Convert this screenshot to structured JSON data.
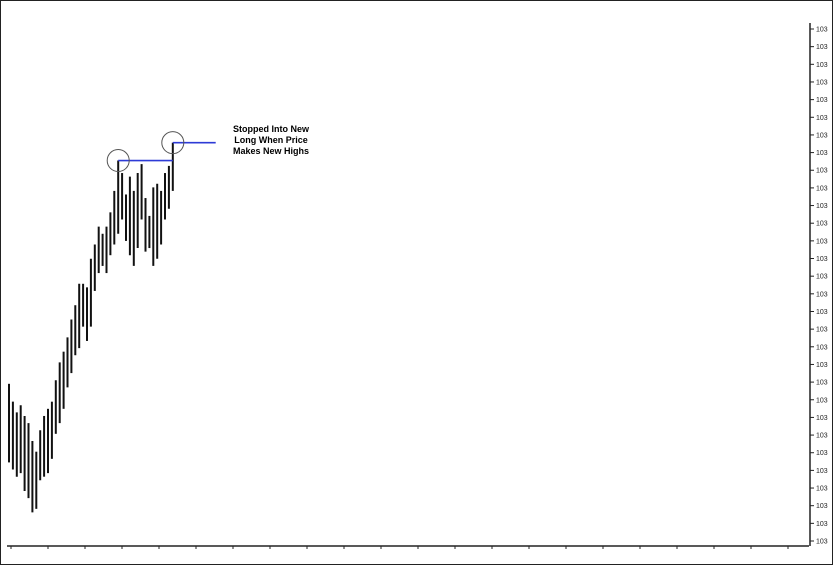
{
  "chart_data": {
    "type": "ohlc",
    "title": "",
    "xlabel": "",
    "ylabel": "",
    "ylim": [
      1030,
      1059
    ],
    "y_ticks": [
      "103",
      "103",
      "103",
      "103",
      "103",
      "103",
      "103",
      "103",
      "103",
      "103",
      "103",
      "103",
      "103",
      "103",
      "103",
      "103",
      "103",
      "103",
      "103",
      "103",
      "103",
      "103",
      "103",
      "103",
      "103",
      "103",
      "103",
      "103",
      "103",
      "103"
    ],
    "bars": [
      {
        "high": 1038.8,
        "low": 1034.4
      },
      {
        "high": 1037.8,
        "low": 1034.0
      },
      {
        "high": 1037.2,
        "low": 1033.6
      },
      {
        "high": 1037.6,
        "low": 1033.8
      },
      {
        "high": 1037.0,
        "low": 1032.8
      },
      {
        "high": 1036.6,
        "low": 1032.4
      },
      {
        "high": 1035.6,
        "low": 1031.6
      },
      {
        "high": 1035.0,
        "low": 1031.8
      },
      {
        "high": 1036.2,
        "low": 1033.4
      },
      {
        "high": 1037.0,
        "low": 1033.6
      },
      {
        "high": 1037.4,
        "low": 1033.8
      },
      {
        "high": 1037.8,
        "low": 1034.6
      },
      {
        "high": 1039.0,
        "low": 1036.0
      },
      {
        "high": 1040.0,
        "low": 1036.6
      },
      {
        "high": 1040.6,
        "low": 1037.4
      },
      {
        "high": 1041.4,
        "low": 1038.6
      },
      {
        "high": 1042.4,
        "low": 1039.4
      },
      {
        "high": 1043.2,
        "low": 1040.4
      },
      {
        "high": 1044.4,
        "low": 1040.8
      },
      {
        "high": 1044.4,
        "low": 1042.0
      },
      {
        "high": 1044.2,
        "low": 1041.2
      },
      {
        "high": 1045.8,
        "low": 1042.0
      },
      {
        "high": 1046.6,
        "low": 1044.0
      },
      {
        "high": 1047.6,
        "low": 1045.0
      },
      {
        "high": 1047.2,
        "low": 1045.4
      },
      {
        "high": 1047.6,
        "low": 1045.0
      },
      {
        "high": 1048.4,
        "low": 1046.0
      },
      {
        "high": 1049.6,
        "low": 1046.6
      },
      {
        "high": 1051.3,
        "low": 1047.2
      },
      {
        "high": 1050.6,
        "low": 1048.0
      },
      {
        "high": 1049.4,
        "low": 1046.8
      },
      {
        "high": 1050.4,
        "low": 1046.0
      },
      {
        "high": 1049.6,
        "low": 1045.4
      },
      {
        "high": 1050.6,
        "low": 1046.4
      },
      {
        "high": 1051.1,
        "low": 1048.0
      },
      {
        "high": 1049.2,
        "low": 1046.2
      },
      {
        "high": 1048.2,
        "low": 1046.4
      },
      {
        "high": 1049.8,
        "low": 1045.4
      },
      {
        "high": 1050.0,
        "low": 1045.8
      },
      {
        "high": 1049.6,
        "low": 1046.6
      },
      {
        "high": 1050.6,
        "low": 1048.0
      },
      {
        "high": 1051.0,
        "low": 1048.6
      },
      {
        "high": 1052.3,
        "low": 1049.6
      }
    ],
    "lines": [
      {
        "from_bar": 28,
        "to_bar": 42,
        "value": 1051.3,
        "color": "#2e3bd6"
      },
      {
        "from_bar": 42,
        "to_bar": 53,
        "value": 1052.3,
        "color": "#2e3bd6"
      }
    ],
    "circles": [
      {
        "bar": 28,
        "value": 1051.3
      },
      {
        "bar": 42,
        "value": 1052.3
      }
    ],
    "annotation": [
      "Stopped Into New",
      "Long When Price",
      "Makes New Highs"
    ],
    "colors": {
      "bars": "#111111",
      "line": "#2e3bd6",
      "frame": "#222222"
    }
  }
}
